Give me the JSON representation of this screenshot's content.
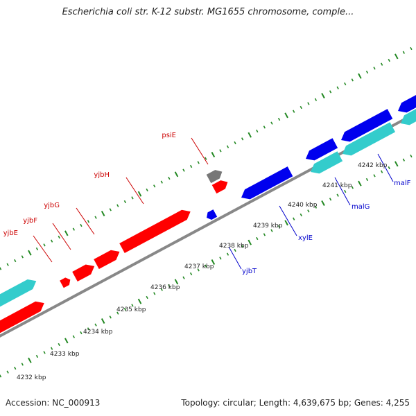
{
  "title": "Escherichia coli str. K-12 substr. MG1655 chromosome, comple...",
  "footer": {
    "accession": "Accession: NC_000913",
    "summary": "Topology: circular; Length: 4,639,675 bp; Genes: 4,255"
  },
  "colors": {
    "forward_gene": "#ff0000",
    "reverse_gene": "#0000ee",
    "cds_track": "#33cccc",
    "other_feature": "#777777",
    "backbone": "#888888",
    "ticks": "#228822",
    "forward_label": "#cc0000",
    "reverse_label": "#0000cc"
  },
  "scale": {
    "unit": "kbp",
    "labels": [
      "4232 kbp",
      "4233 kbp",
      "4234 kbp",
      "4235 kbp",
      "4236 kbp",
      "4237 kbp",
      "4238 kbp",
      "4239 kbp",
      "4240 kbp",
      "4241 kbp",
      "4242 kbp"
    ]
  },
  "gene_labels": {
    "forward": [
      "yjbE",
      "yjbF",
      "yjbG",
      "yjbH",
      "psiE"
    ],
    "reverse": [
      "yjbT",
      "xylE",
      "malG",
      "malF"
    ]
  }
}
